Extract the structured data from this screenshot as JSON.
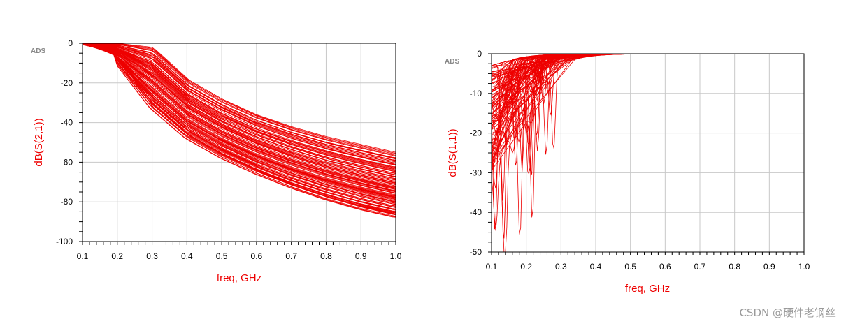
{
  "chart_data": [
    {
      "type": "line",
      "ylabel": "dB(S(2,1))",
      "xlabel": "freq, GHz",
      "badge": "ADS",
      "xlim": [
        0.1,
        1.0
      ],
      "ylim": [
        -100,
        0
      ],
      "xticks": [
        "0.1",
        "0.2",
        "0.3",
        "0.4",
        "0.5",
        "0.6",
        "0.7",
        "0.8",
        "0.9",
        "1.0"
      ],
      "yticks": [
        "0",
        "-20",
        "-40",
        "-60",
        "-80",
        "-100"
      ],
      "grid": true,
      "line_color": "#ee0000",
      "series_count": 120,
      "envelope": {
        "x": [
          0.1,
          0.2,
          0.3,
          0.4,
          0.5,
          0.6,
          0.7,
          0.8,
          0.9,
          1.0
        ],
        "upper": [
          0,
          0,
          -2,
          -18,
          -28,
          -36,
          -42,
          -47,
          -51,
          -55
        ],
        "lower": [
          -2,
          -10,
          -33,
          -48,
          -58,
          -66,
          -73,
          -79,
          -84,
          -88
        ]
      }
    },
    {
      "type": "line",
      "ylabel": "dB(S(1,1))",
      "xlabel": "freq, GHz",
      "badge": "ADS",
      "xlim": [
        0.1,
        1.0
      ],
      "ylim": [
        -50,
        0
      ],
      "xticks": [
        "0.1",
        "0.2",
        "0.3",
        "0.4",
        "0.5",
        "0.6",
        "0.7",
        "0.8",
        "0.9",
        "1.0"
      ],
      "yticks": [
        "0",
        "-10",
        "-20",
        "-30",
        "-40",
        "-50"
      ],
      "grid": true,
      "line_color": "#ee0000",
      "series_count": 90,
      "notches": [
        {
          "x": 0.135,
          "y": -45
        },
        {
          "x": 0.11,
          "y": -42
        },
        {
          "x": 0.21,
          "y": -29
        },
        {
          "x": 0.17,
          "y": -27
        },
        {
          "x": 0.23,
          "y": -20
        },
        {
          "x": 0.27,
          "y": -15
        },
        {
          "x": 0.25,
          "y": -12
        }
      ]
    }
  ],
  "watermark": "CSDN @硬件老钢丝"
}
